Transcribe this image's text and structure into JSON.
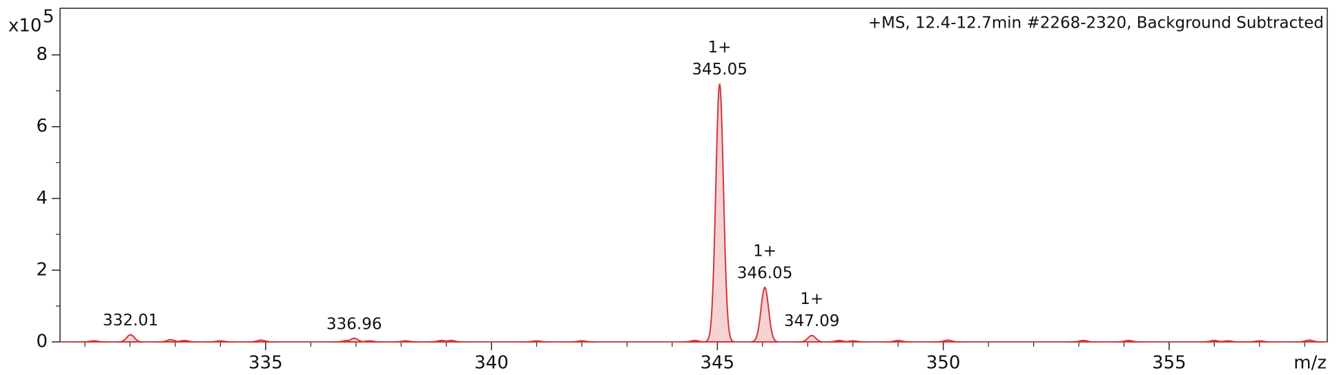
{
  "chart_data": {
    "type": "spectrum",
    "title": "+MS, 12.4-12.7min #2268-2320, Background Subtracted",
    "y_multiplier": "x10",
    "y_exponent": "5",
    "x_label": "m/z",
    "color": "#d0363a",
    "fill": "#f6d3d3",
    "x": [
      331.2,
      332.01,
      332.9,
      333.2,
      334.0,
      334.9,
      336.8,
      336.96,
      337.3,
      338.1,
      338.9,
      339.1,
      341.0,
      342.0,
      344.5,
      345.05,
      346.05,
      347.09,
      347.7,
      348.0,
      349.0,
      350.1,
      353.1,
      354.1,
      356.0,
      356.3,
      357.0,
      358.1
    ],
    "values": [
      0.03,
      0.2,
      0.06,
      0.04,
      0.03,
      0.05,
      0.04,
      0.1,
      0.03,
      0.03,
      0.04,
      0.04,
      0.03,
      0.03,
      0.04,
      7.2,
      1.52,
      0.18,
      0.04,
      0.03,
      0.04,
      0.05,
      0.04,
      0.04,
      0.04,
      0.03,
      0.03,
      0.05
    ],
    "x_labels": [
      null,
      "332.01",
      null,
      null,
      null,
      null,
      null,
      "336.96",
      null,
      null,
      null,
      null,
      null,
      null,
      null,
      "345.05",
      "346.05",
      "347.09",
      null,
      null,
      null,
      null,
      null,
      null,
      null,
      null,
      null,
      null
    ],
    "charges": [
      null,
      null,
      null,
      null,
      null,
      null,
      null,
      null,
      null,
      null,
      null,
      null,
      null,
      null,
      null,
      "1+",
      "1+",
      "1+",
      null,
      null,
      null,
      null,
      null,
      null,
      null,
      null,
      null,
      null
    ],
    "xlim": [
      330.45,
      358.5
    ],
    "ylim": [
      0,
      9.3
    ],
    "xticks": [
      335,
      340,
      345,
      350,
      355
    ],
    "xticks_minor": [
      331,
      332,
      333,
      334,
      336,
      337,
      338,
      339,
      341,
      342,
      343,
      344,
      346,
      347,
      348,
      349,
      351,
      352,
      353,
      354,
      356,
      357,
      358
    ],
    "yticks": [
      0,
      2,
      4,
      6,
      8
    ],
    "yticks_minor": [
      1,
      3,
      5,
      7
    ]
  }
}
